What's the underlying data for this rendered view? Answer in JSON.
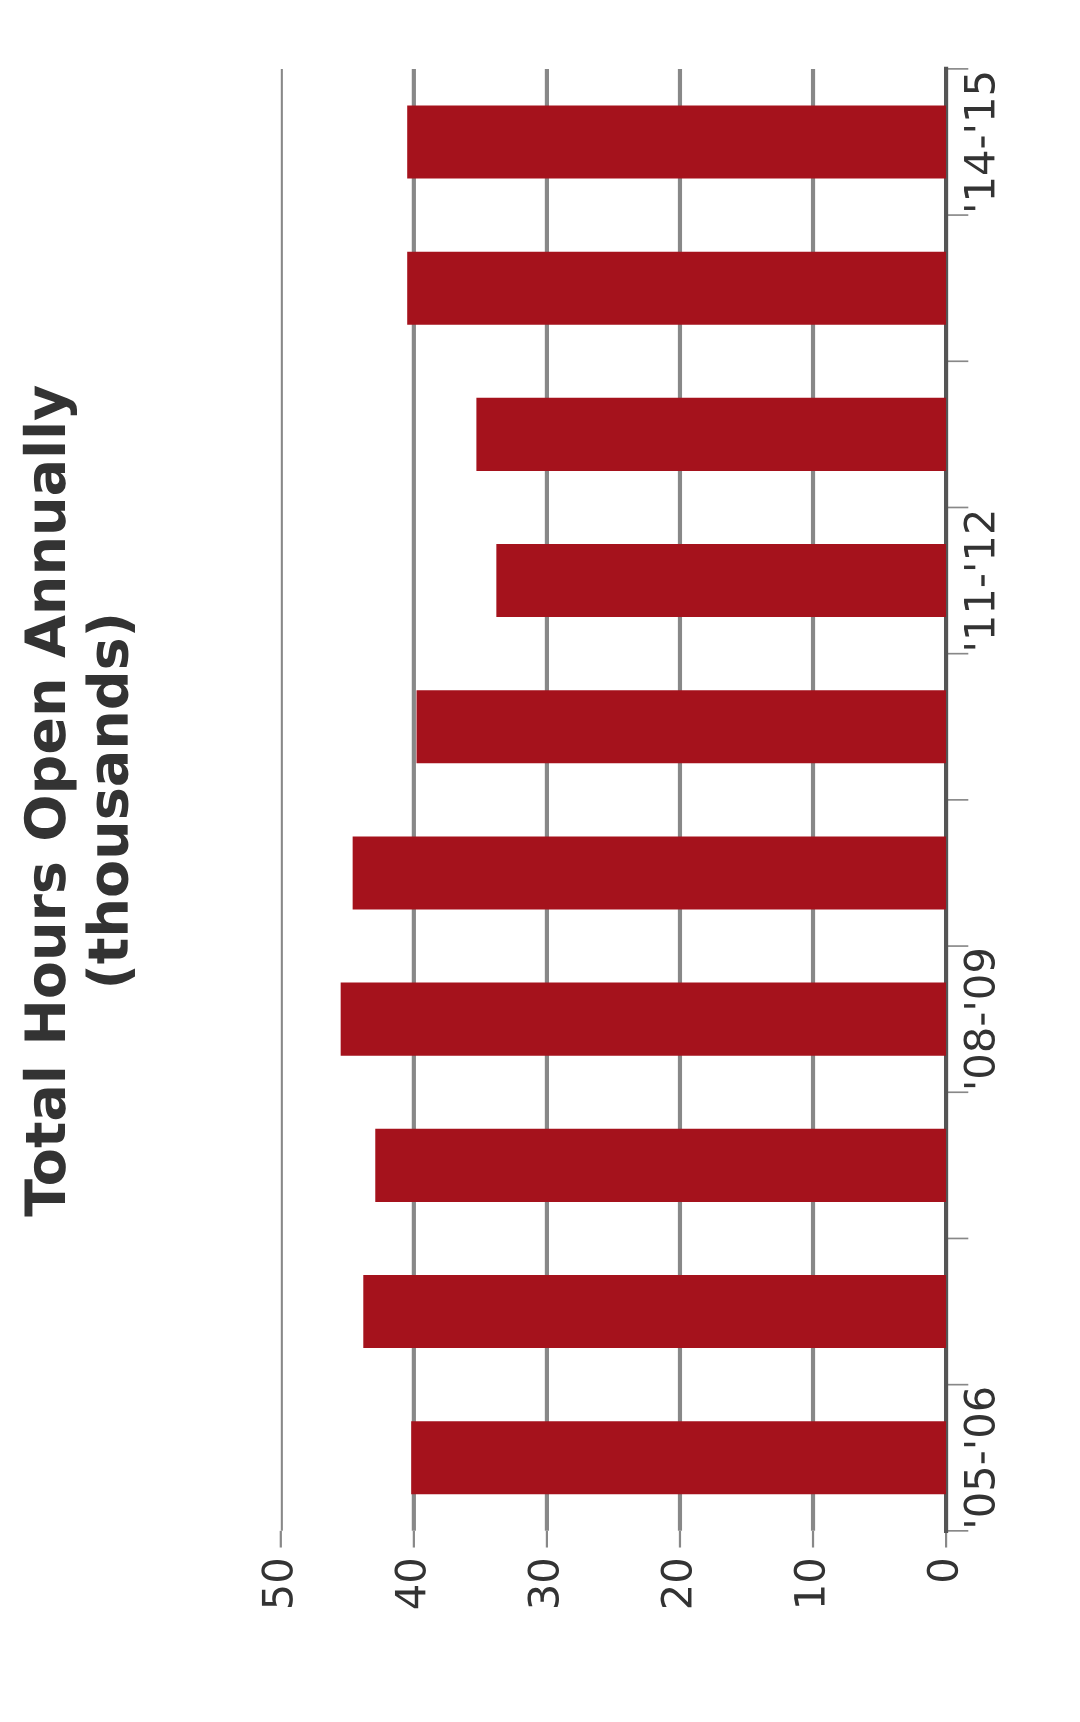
{
  "chart_data": {
    "type": "bar",
    "orientation": "horizontal",
    "title": "Total Hours Open Annually\n(thousands)",
    "categories": [
      "'14-'15",
      null,
      null,
      "'11-'12",
      null,
      null,
      "'08-'09",
      null,
      null,
      "'05-'06"
    ],
    "values": [
      40.5,
      40.5,
      35.3,
      33.8,
      39.8,
      44.6,
      45.5,
      42.9,
      43.8,
      40.2
    ],
    "color": "#a5121c",
    "xlim": [
      50,
      0
    ],
    "xticks": [
      50,
      40,
      30,
      20,
      10,
      0
    ],
    "grid": "x"
  }
}
